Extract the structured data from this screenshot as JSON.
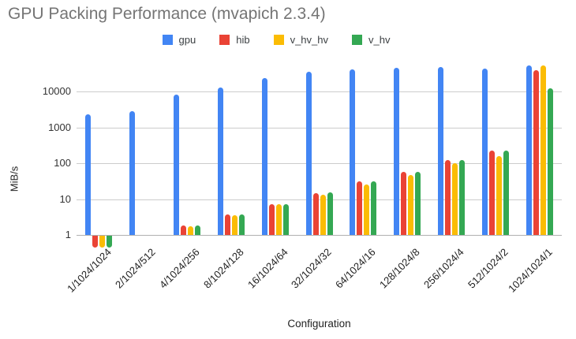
{
  "chart_data": {
    "type": "bar",
    "title": "GPU Packing Performance (mvapich 2.3.4)",
    "xlabel": "Configuration",
    "ylabel": "MiB/s",
    "y_scale": "log",
    "y_ticks": [
      1,
      10,
      100,
      1000,
      10000
    ],
    "ylim": [
      0.4,
      70000
    ],
    "grid": true,
    "legend_position": "top",
    "categories": [
      "1/1024/1024",
      "2/1024/512",
      "4/1024/256",
      "8/1024/128",
      "16/1024/64",
      "32/1024/32",
      "64/1024/16",
      "128/1024/8",
      "256/1024/4",
      "512/1024/2",
      "1024/1024/1"
    ],
    "series": [
      {
        "name": "gpu",
        "color": "#4285F4",
        "values": [
          2250,
          2800,
          8300,
          13000,
          23500,
          35500,
          41000,
          45500,
          48500,
          44000,
          52000
        ]
      },
      {
        "name": "hib",
        "color": "#EA4335",
        "values": [
          0.45,
          null,
          1.8,
          3.7,
          7.3,
          14.5,
          31,
          57,
          120,
          230,
          40000
        ]
      },
      {
        "name": "v_hv_hv",
        "color": "#FBBC04",
        "values": [
          0.45,
          null,
          1.75,
          3.6,
          7.1,
          13.5,
          26,
          46,
          98,
          160,
          53000
        ]
      },
      {
        "name": "v_hv",
        "color": "#34A853",
        "values": [
          0.45,
          null,
          1.8,
          3.7,
          7.3,
          15,
          31,
          58,
          124,
          220,
          12500
        ]
      }
    ]
  }
}
